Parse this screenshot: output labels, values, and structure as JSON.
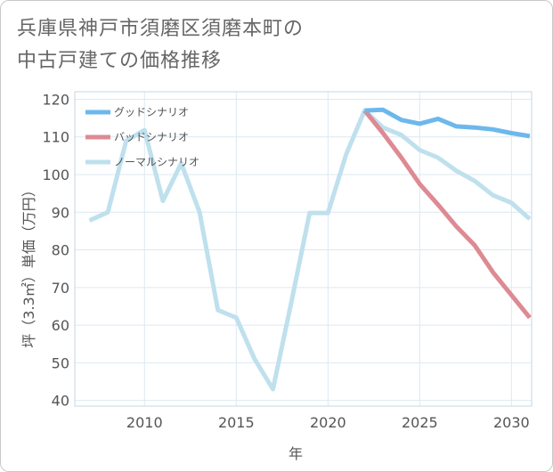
{
  "title_lines": [
    "兵庫県神戸市須磨区須磨本町の",
    "中古戸建ての価格推移"
  ],
  "chart_data": {
    "type": "line",
    "title": "兵庫県神戸市須磨区須磨本町の中古戸建ての価格推移",
    "xlabel": "年",
    "ylabel": "坪（3.3㎡）単価（万円）",
    "xlim": [
      2006.2,
      2031.1
    ],
    "ylim": [
      38.5,
      122
    ],
    "xticks": [
      2010,
      2015,
      2020,
      2025,
      2030
    ],
    "yticks": [
      40,
      50,
      60,
      70,
      80,
      90,
      100,
      110,
      120
    ],
    "grid": true,
    "legend_position": "top-left",
    "series": [
      {
        "name": "グッドシナリオ",
        "color": "#6cb8ec",
        "x": [
          2022,
          2023,
          2024,
          2025,
          2026,
          2027,
          2028,
          2029,
          2030,
          2031
        ],
        "values": [
          117,
          117.2,
          114.5,
          113.5,
          114.8,
          112.8,
          112.5,
          112,
          111,
          110.2
        ]
      },
      {
        "name": "バッドシナリオ",
        "color": "#de8a93",
        "x": [
          2022,
          2023,
          2024,
          2025,
          2026,
          2027,
          2028,
          2029,
          2030,
          2031
        ],
        "values": [
          117,
          111,
          104.5,
          97.5,
          92,
          86.2,
          81.2,
          74,
          68,
          62
        ]
      },
      {
        "name": "ノーマルシナリオ",
        "color": "#bfe0ed",
        "x": [
          2007,
          2008,
          2009,
          2010,
          2011,
          2012,
          2013,
          2014,
          2015,
          2016,
          2017,
          2018,
          2019,
          2020,
          2021,
          2022,
          2023,
          2024,
          2025,
          2026,
          2027,
          2028,
          2029,
          2030,
          2031
        ],
        "values": [
          87.8,
          90,
          109,
          111.8,
          93,
          103,
          90,
          64,
          62,
          51,
          43,
          66,
          89.8,
          89.8,
          105.5,
          117,
          112.5,
          110.5,
          106.5,
          104.5,
          101,
          98.3,
          94.5,
          92.5,
          88.2
        ]
      }
    ]
  }
}
